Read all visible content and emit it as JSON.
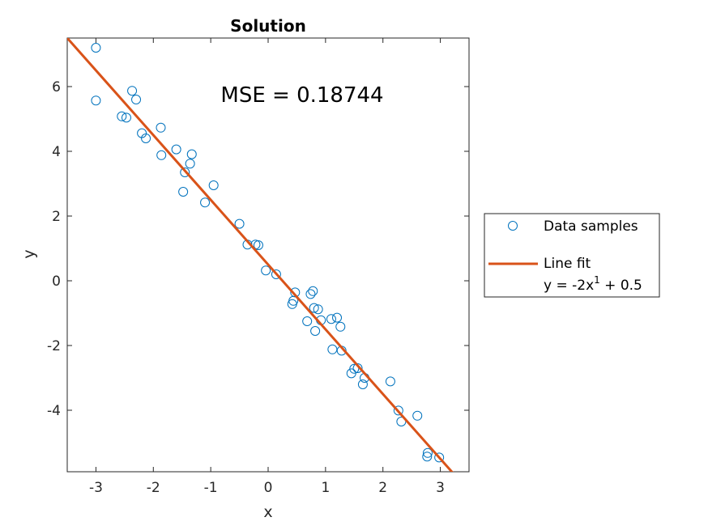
{
  "chart_data": {
    "type": "scatter",
    "title": "Solution",
    "xlabel": "x",
    "ylabel": "y",
    "xlim": [
      -3.5,
      3.5
    ],
    "ylim": [
      -5.9,
      7.5
    ],
    "xticks": [
      -3,
      -2,
      -1,
      0,
      1,
      2,
      3
    ],
    "yticks": [
      -4,
      -2,
      0,
      2,
      4,
      6
    ],
    "xtick_labels": [
      "-3",
      "-2",
      "-1",
      "0",
      "1",
      "2",
      "3"
    ],
    "ytick_labels": [
      "-4",
      "-2",
      "0",
      "2",
      "4",
      "6"
    ],
    "annotation": "MSE = 0.18744",
    "legend_placement": "outside-right",
    "series": [
      {
        "name": "Data samples",
        "kind": "scatter",
        "marker": "circle-open",
        "color": "#0072BD",
        "x": [
          -3.0,
          -3.0,
          -2.55,
          -2.47,
          -2.37,
          -2.3,
          -2.2,
          -2.13,
          -1.87,
          -1.86,
          -1.6,
          -1.45,
          -1.48,
          -1.36,
          -1.33,
          -1.1,
          -0.95,
          -0.5,
          -0.36,
          -0.22,
          -0.17,
          -0.04,
          0.14,
          0.42,
          0.44,
          0.47,
          0.68,
          0.74,
          0.78,
          0.8,
          0.82,
          0.87,
          0.92,
          1.1,
          1.12,
          1.2,
          1.26,
          1.28,
          1.45,
          1.5,
          1.56,
          1.65,
          1.68,
          2.13,
          2.27,
          2.32,
          2.6,
          2.77,
          2.78,
          2.98
        ],
        "y": [
          7.2,
          5.57,
          5.08,
          5.04,
          5.87,
          5.6,
          4.56,
          4.4,
          4.73,
          3.88,
          4.06,
          3.35,
          2.75,
          3.62,
          3.91,
          2.42,
          2.95,
          1.76,
          1.12,
          1.12,
          1.1,
          0.32,
          0.2,
          -0.72,
          -0.62,
          -0.36,
          -1.25,
          -0.41,
          -0.32,
          -0.84,
          -1.55,
          -0.88,
          -1.22,
          -1.18,
          -2.12,
          -1.14,
          -1.42,
          -2.16,
          -2.86,
          -2.72,
          -2.7,
          -3.2,
          -3.0,
          -3.11,
          -4.01,
          -4.35,
          -4.17,
          -5.43,
          -5.32,
          -5.46
        ]
      },
      {
        "name": "Line fit",
        "kind": "line",
        "color": "#D95319",
        "equation": "y = -2x¹ + 0.5",
        "slope": -2,
        "intercept": 0.5
      }
    ]
  },
  "legend": {
    "items": [
      {
        "label": "Data samples"
      },
      {
        "label": "Line fit",
        "equation_prefix": "y = -2x",
        "equation_exponent": "1",
        "equation_suffix": " + 0.5"
      }
    ]
  }
}
